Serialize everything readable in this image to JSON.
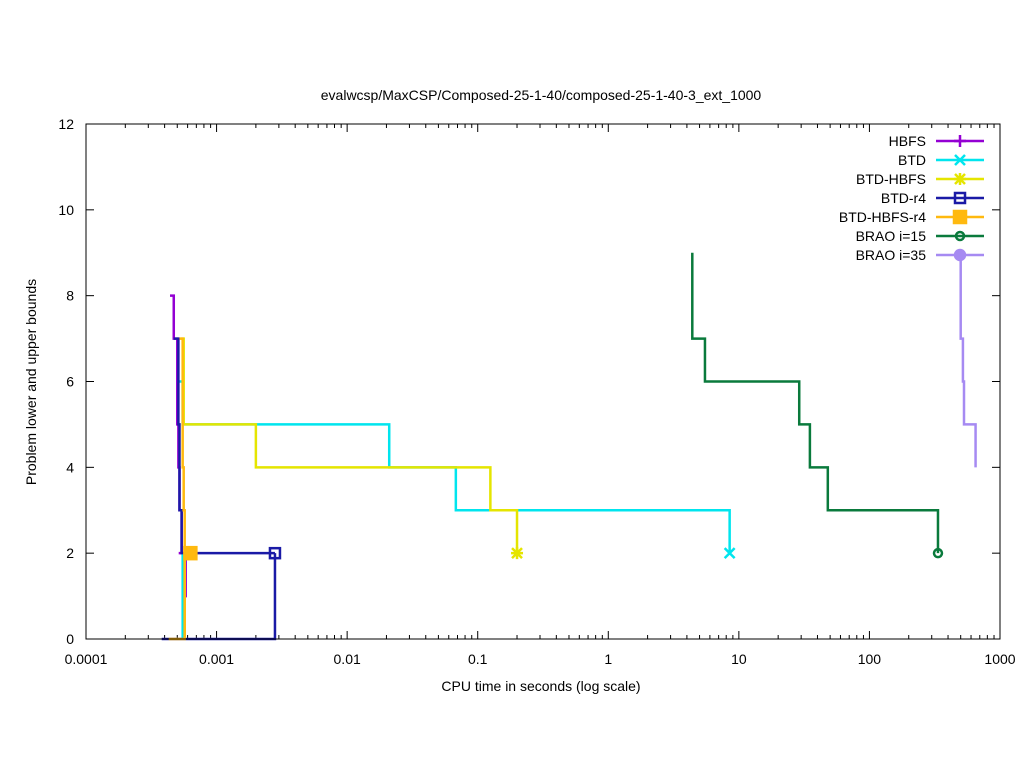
{
  "chart_data": {
    "type": "line",
    "title": "evalwcsp/MaxCSP/Composed-25-1-40/composed-25-1-40-3_ext_1000",
    "xlabel": "CPU time in seconds (log scale)",
    "ylabel": "Problem lower and upper bounds",
    "xscale": "log",
    "xlim": [
      0.0001,
      1000
    ],
    "ylim": [
      0,
      12
    ],
    "x_ticks": [
      {
        "value": 0.0001,
        "label": "0.0001"
      },
      {
        "value": 0.001,
        "label": "0.001"
      },
      {
        "value": 0.01,
        "label": "0.01"
      },
      {
        "value": 0.1,
        "label": "0.1"
      },
      {
        "value": 1,
        "label": "1"
      },
      {
        "value": 10,
        "label": "10"
      },
      {
        "value": 100,
        "label": "100"
      },
      {
        "value": 1000,
        "label": "1000"
      }
    ],
    "y_ticks": [
      {
        "value": 0,
        "label": "0"
      },
      {
        "value": 2,
        "label": "2"
      },
      {
        "value": 4,
        "label": "4"
      },
      {
        "value": 6,
        "label": "6"
      },
      {
        "value": 8,
        "label": "8"
      },
      {
        "value": 10,
        "label": "10"
      },
      {
        "value": 12,
        "label": "12"
      }
    ],
    "grid": false,
    "legend_position": "top-right",
    "series": [
      {
        "name": "HBFS",
        "color": "#9400d3",
        "marker": "plus",
        "final": {
          "x": 0.00057,
          "y": 2
        },
        "upper": [
          [
            0.00044,
            8
          ],
          [
            0.00047,
            8
          ],
          [
            0.00047,
            7
          ],
          [
            0.0005,
            7
          ],
          [
            0.0005,
            5
          ],
          [
            0.00051,
            5
          ],
          [
            0.00051,
            4
          ],
          [
            0.00052,
            4
          ],
          [
            0.00052,
            3
          ],
          [
            0.00054,
            3
          ],
          [
            0.00054,
            2
          ]
        ],
        "lower": [
          [
            0.00057,
            0
          ],
          [
            0.00057,
            1
          ],
          [
            0.00058,
            1
          ],
          [
            0.00058,
            2
          ]
        ]
      },
      {
        "name": "BTD",
        "color": "#00e5ee",
        "marker": "cross",
        "final": {
          "x": 8.5,
          "y": 2
        },
        "upper": [
          [
            0.0005,
            6
          ],
          [
            0.00055,
            6
          ],
          [
            0.00055,
            5
          ],
          [
            0.021,
            5
          ],
          [
            0.021,
            4
          ],
          [
            0.068,
            4
          ],
          [
            0.068,
            3
          ],
          [
            8.5,
            3
          ],
          [
            8.5,
            2
          ]
        ],
        "lower": [
          [
            0.00055,
            0
          ],
          [
            0.00055,
            2
          ]
        ]
      },
      {
        "name": "BTD-HBFS",
        "color": "#e5e500",
        "marker": "star",
        "final": {
          "x": 0.2,
          "y": 2
        },
        "upper": [
          [
            0.00053,
            7
          ],
          [
            0.00056,
            7
          ],
          [
            0.00056,
            5
          ],
          [
            0.002,
            5
          ],
          [
            0.002,
            4
          ],
          [
            0.125,
            4
          ],
          [
            0.125,
            3
          ],
          [
            0.2,
            3
          ],
          [
            0.2,
            2
          ]
        ],
        "lower": [
          [
            0.00057,
            0
          ],
          [
            0.00057,
            2
          ]
        ]
      },
      {
        "name": "BTD-r4",
        "color": "#1a1aa6",
        "marker": "square",
        "final": {
          "x": 0.0028,
          "y": 2
        },
        "upper": [
          [
            0.00047,
            7
          ],
          [
            0.00051,
            7
          ],
          [
            0.00051,
            5
          ],
          [
            0.00052,
            5
          ],
          [
            0.00052,
            3
          ],
          [
            0.00054,
            3
          ],
          [
            0.00054,
            2
          ],
          [
            0.0028,
            2
          ]
        ],
        "lower": [
          [
            0.00038,
            0
          ],
          [
            0.0028,
            0
          ],
          [
            0.0028,
            2
          ]
        ]
      },
      {
        "name": "BTD-HBFS-r4",
        "color": "#ffb90f",
        "marker": "filled-square",
        "final": {
          "x": 0.00063,
          "y": 2
        },
        "upper": [
          [
            0.00052,
            7
          ],
          [
            0.00055,
            7
          ],
          [
            0.00055,
            4
          ],
          [
            0.00056,
            4
          ],
          [
            0.00056,
            3
          ],
          [
            0.00057,
            3
          ],
          [
            0.00057,
            2
          ],
          [
            0.00063,
            2
          ]
        ],
        "lower": [
          [
            0.00043,
            0
          ],
          [
            0.00057,
            0
          ],
          [
            0.00057,
            2
          ]
        ]
      },
      {
        "name": "BRAO i=15",
        "color": "#0a7a3c",
        "marker": "circle",
        "final": {
          "x": 335,
          "y": 2
        },
        "upper": [
          [
            4.4,
            9
          ],
          [
            4.4,
            7
          ],
          [
            5.5,
            7
          ],
          [
            5.5,
            6
          ],
          [
            29,
            6
          ],
          [
            29,
            5
          ],
          [
            35,
            5
          ],
          [
            35,
            4
          ],
          [
            48,
            4
          ],
          [
            48,
            3
          ],
          [
            335,
            3
          ],
          [
            335,
            2
          ]
        ],
        "lower": []
      },
      {
        "name": "BRAO i=35",
        "color": "#a68af2",
        "marker": "filled-circle",
        "final": null,
        "upper": [
          [
            500,
            9
          ],
          [
            500,
            7
          ],
          [
            520,
            7
          ],
          [
            520,
            6
          ],
          [
            530,
            6
          ],
          [
            530,
            5
          ],
          [
            650,
            5
          ],
          [
            650,
            4
          ]
        ],
        "lower": []
      }
    ]
  }
}
